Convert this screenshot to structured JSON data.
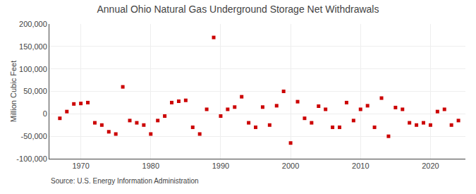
{
  "chart_data": {
    "type": "scatter",
    "title": "Annual Ohio Natural Gas Underground Storage Net Withdrawals",
    "ylabel": "Million Cubic Feet",
    "annotations": [
      "Source: U.S. Energy Information Administration"
    ],
    "x": [
      1967,
      1968,
      1969,
      1970,
      1971,
      1972,
      1973,
      1974,
      1975,
      1976,
      1977,
      1978,
      1979,
      1980,
      1981,
      1982,
      1983,
      1984,
      1985,
      1986,
      1987,
      1988,
      1989,
      1990,
      1991,
      1992,
      1993,
      1994,
      1995,
      1996,
      1997,
      1998,
      1999,
      2000,
      2001,
      2002,
      2003,
      2004,
      2005,
      2006,
      2007,
      2008,
      2009,
      2010,
      2011,
      2012,
      2013,
      2014,
      2015,
      2016,
      2017,
      2018,
      2019,
      2020,
      2021,
      2022,
      2023,
      2024
    ],
    "values": [
      -10000,
      5000,
      22000,
      23000,
      25000,
      -20000,
      -25000,
      -40000,
      -45000,
      60000,
      -15000,
      -20000,
      -25000,
      -45000,
      -15000,
      -5000,
      25000,
      28000,
      30000,
      -30000,
      -45000,
      10000,
      170000,
      -5000,
      10000,
      15000,
      38000,
      -20000,
      -30000,
      15000,
      -25000,
      18000,
      50000,
      -65000,
      27000,
      -10000,
      -20000,
      17000,
      10000,
      -30000,
      -30000,
      25000,
      -15000,
      10000,
      18000,
      -30000,
      35000,
      -50000,
      14000,
      10000,
      -20000,
      -25000,
      -20000,
      -25000,
      5000,
      10000,
      -25000,
      -15000
    ],
    "color": "#cc0000",
    "marker": "square",
    "xlim": [
      1965.5,
      2025
    ],
    "xticks": [
      1970,
      1980,
      1990,
      2000,
      2010,
      2020
    ],
    "ylim": [
      -100000,
      200000
    ],
    "yticks": [
      {
        "value": -100000,
        "label": "-100,000"
      },
      {
        "value": -50000,
        "label": "-50,000"
      },
      0,
      {
        "value": 50000,
        "label": "50,000"
      },
      {
        "value": 100000,
        "label": "100,000"
      },
      {
        "value": 150000,
        "label": "150,000"
      },
      {
        "value": 200000,
        "label": "200,000"
      }
    ],
    "grid": true
  }
}
